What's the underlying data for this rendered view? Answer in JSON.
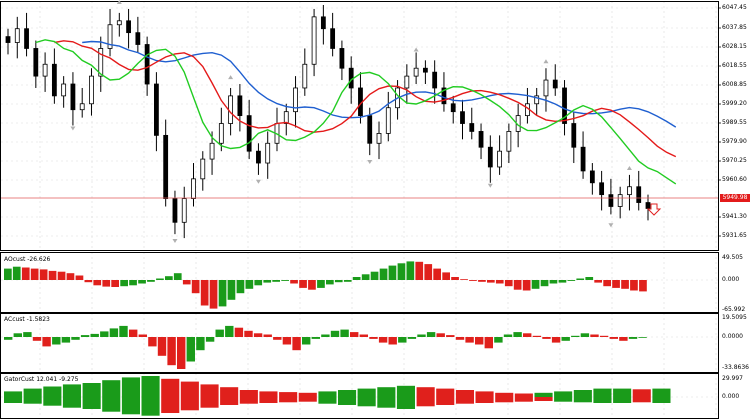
{
  "main_axis": {
    "labels": [
      "6047.45",
      "6037.85",
      "6028.15",
      "6018.55",
      "6008.85",
      "5999.20",
      "5989.55",
      "5979.90",
      "5970.25",
      "5960.60",
      "5941.30",
      "5931.65"
    ],
    "current_price": "5949.98"
  },
  "panes": {
    "ao": {
      "title": "AOcust -26.626",
      "labels": [
        "49.505",
        "0.000",
        "-65.992"
      ]
    },
    "ac": {
      "title": "ACcust -1.5823",
      "labels": [
        "19.5095",
        "0.0000",
        "-33.8636"
      ]
    },
    "gator": {
      "title": "GatorCust 12.041 -9.275",
      "labels": [
        "29.997",
        "0.000"
      ]
    }
  },
  "colors": {
    "grid": "#dcdcdc",
    "up_bar": "#1a9b1a",
    "down_bar": "#e0201c",
    "jaw": "#1f5fd0",
    "teeth": "#e41a1a",
    "lips": "#22cc22",
    "price_line": "#e05a5a"
  },
  "chart_data": [
    {
      "type": "line",
      "title": "",
      "series": [
        {
          "name": "",
          "values": [
            6031,
            6038,
            6028,
            6014,
            6020,
            6004,
            6010,
            5997,
            6000,
            6014,
            6028,
            6040,
            6042,
            6036,
            6030,
            6010,
            5984,
            5952,
            5940,
            5952,
            5962,
            5972,
            5980,
            5990,
            6004,
            5994,
            5976,
            5970,
            5980,
            5990,
            5996,
            6008,
            6020,
            6044,
            6038,
            6028,
            6018,
            6008,
            5994,
            5980,
            5985,
            5998,
            6008,
            6014,
            6018,
            6016,
            6008,
            6000,
            5996,
            5990,
            5986,
            5978,
            5968,
            5976,
            5986,
            5994,
            6000,
            6004,
            6012,
            6008,
            5990,
            5978,
            5966,
            5960,
            5954,
            5948,
            5954,
            5958,
            5950,
            5947
          ]
        }
      ]
    },
    {
      "type": "bar",
      "title": "",
      "values": [
        30,
        35,
        33,
        30,
        28,
        24,
        22,
        18,
        12,
        -5,
        -12,
        -15,
        -16,
        -14,
        -12,
        -8,
        -4,
        4,
        10,
        18,
        -10,
        -30,
        -58,
        -65,
        -60,
        -45,
        -30,
        -20,
        -12,
        -6,
        -4,
        -2,
        -8,
        -18,
        -22,
        -18,
        -10,
        -5,
        -4,
        8,
        15,
        22,
        30,
        38,
        44,
        49,
        48,
        42,
        30,
        20,
        8,
        2,
        -2,
        -4,
        -6,
        -8,
        -14,
        -22,
        -24,
        -20,
        -14,
        -8,
        -6,
        -2,
        4,
        8,
        -6,
        -14,
        -18,
        -20,
        -24,
        -26
      ]
    },
    {
      "type": "bar",
      "title": "",
      "values": [
        -3,
        6,
        8,
        -4,
        -10,
        -8,
        -6,
        -3,
        3,
        5,
        9,
        14,
        18,
        12,
        4,
        -10,
        -20,
        -30,
        -34,
        -26,
        -14,
        -5,
        12,
        18,
        15,
        10,
        6,
        4,
        -3,
        -8,
        -14,
        -8,
        -2,
        4,
        10,
        12,
        8,
        4,
        -2,
        -6,
        -8,
        -6,
        -2,
        4,
        8,
        6,
        3,
        -3,
        -6,
        -8,
        -12,
        -6,
        4,
        8,
        6,
        2,
        -2,
        -6,
        -4,
        2,
        6,
        4,
        2,
        -2,
        -4,
        -2,
        0
      ]
    },
    {
      "type": "bar",
      "title": "",
      "values": [
        8,
        -9,
        12,
        -10,
        15,
        -13,
        18,
        -16,
        20,
        -18,
        24,
        -22,
        28,
        -26,
        30,
        -28,
        26,
        -24,
        22,
        -20,
        18,
        -16,
        14,
        -12,
        10,
        -10,
        8,
        -9,
        7,
        -8,
        6,
        -7,
        8,
        -10,
        10,
        -12,
        12,
        -14,
        14,
        -16,
        16,
        -18,
        14,
        -14,
        12,
        -12,
        10,
        -10,
        8,
        -9,
        6,
        -8,
        5,
        -7,
        6,
        -6,
        8,
        -7,
        10,
        -8,
        12,
        -9,
        12,
        -9,
        11,
        -8,
        12,
        -9
      ]
    }
  ]
}
